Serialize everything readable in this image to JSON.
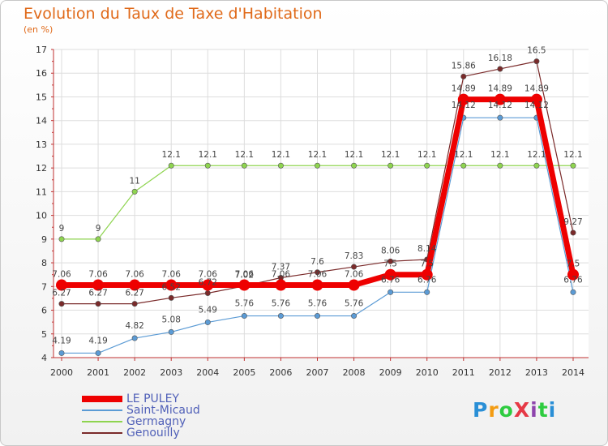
{
  "chart_data": {
    "type": "line",
    "title": "Evolution du Taux de Taxe d'Habitation",
    "subtitle": "(en %)",
    "categories": [
      "2000",
      "2001",
      "2002",
      "2003",
      "2004",
      "2005",
      "2006",
      "2007",
      "2008",
      "2009",
      "2010",
      "2011",
      "2012",
      "2013",
      "2014"
    ],
    "ylim": [
      4,
      17
    ],
    "yticks": [
      4,
      5,
      6,
      7,
      8,
      9,
      10,
      11,
      12,
      13,
      14,
      15,
      16,
      17
    ],
    "series": [
      {
        "name": "LE PULEY",
        "color": "#ee0000",
        "values": [
          7.06,
          7.06,
          7.06,
          7.06,
          7.06,
          7.06,
          7.06,
          7.06,
          7.06,
          7.5,
          7.5,
          14.89,
          14.89,
          14.89,
          7.5
        ],
        "labels": [
          "7.06",
          "7.06",
          "7.06",
          "7.06",
          "7.06",
          "7.06",
          "7.06",
          "7.06",
          "7.06",
          "7.5",
          "7.5",
          "14.89",
          "14.89",
          "14.89",
          "7.5"
        ]
      },
      {
        "name": "Saint-Micaud",
        "color": "#5b9bd5",
        "values": [
          4.19,
          4.19,
          4.82,
          5.08,
          5.49,
          5.76,
          5.76,
          5.76,
          5.76,
          6.76,
          6.76,
          14.12,
          14.12,
          14.12,
          6.76
        ],
        "labels": [
          "4.19",
          "4.19",
          "4.82",
          "5.08",
          "5.49",
          "5.76",
          "5.76",
          "5.76",
          "5.76",
          "6.76",
          "6.76",
          "14.12",
          "14.12",
          "14.12",
          "6.76"
        ]
      },
      {
        "name": "Germagny",
        "color": "#8ed44f",
        "values": [
          9,
          9,
          11,
          12.1,
          12.1,
          12.1,
          12.1,
          12.1,
          12.1,
          12.1,
          12.1,
          12.1,
          12.1,
          12.1,
          12.1
        ],
        "labels": [
          "9",
          "9",
          "11",
          "12.1",
          "12.1",
          "12.1",
          "12.1",
          "12.1",
          "12.1",
          "12.1",
          "12.1",
          "12.1",
          "12.1",
          "12.1",
          "12.1"
        ]
      },
      {
        "name": "Genouilly",
        "color": "#7a2a2a",
        "values": [
          6.27,
          6.27,
          6.27,
          6.52,
          6.72,
          7.02,
          7.37,
          7.6,
          7.83,
          8.06,
          8.14,
          15.86,
          16.18,
          16.5,
          9.27
        ],
        "labels": [
          "6.27",
          "6.27",
          "6.27",
          "6.52",
          "6.72",
          "7.02",
          "7.37",
          "7.6",
          "7.83",
          "8.06",
          "8.14",
          "15.86",
          "16.18",
          "16.5",
          "9.27"
        ]
      }
    ]
  },
  "logo": {
    "text": "ProXiti",
    "letters": [
      "P",
      "r",
      "o",
      "X",
      "i",
      "t",
      "i"
    ],
    "colors": [
      "#2a8fd6",
      "#f39c12",
      "#2ecc40",
      "#e63946",
      "#8e44ad",
      "#2ecc40",
      "#2a8fd6"
    ]
  }
}
